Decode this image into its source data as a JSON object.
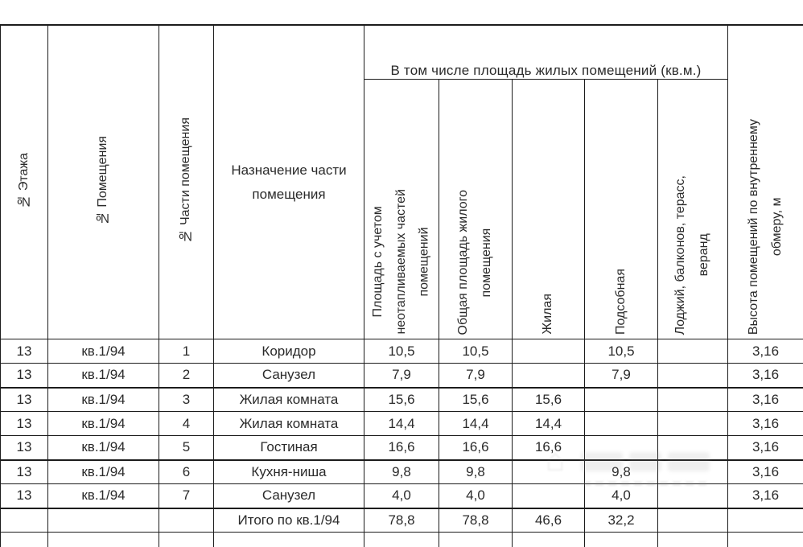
{
  "table": {
    "group_header": "В том числе площадь жилых помещений (кв.м.)",
    "columns": [
      {
        "label": "№ Этажа"
      },
      {
        "label": "№ Помещения"
      },
      {
        "label": "№ Части помещения"
      },
      {
        "label": "Назначение части\nпомещения"
      },
      {
        "label": "Площадь с учетом\nнеотапливаемых частей\nпомещений"
      },
      {
        "label": "Общая площадь жилого\nпомещения"
      },
      {
        "label": "Жилая"
      },
      {
        "label": "Подсобная"
      },
      {
        "label": "Лоджий, балконов, терасс,\nверанд"
      },
      {
        "label": "Высота помещений по внутреннему\nобмеру, м"
      }
    ],
    "rows": [
      [
        "13",
        "кв.1/94",
        "1",
        "Коридор",
        "10,5",
        "10,5",
        "",
        "10,5",
        "",
        "3,16"
      ],
      [
        "13",
        "кв.1/94",
        "2",
        "Санузел",
        "7,9",
        "7,9",
        "",
        "7,9",
        "",
        "3,16"
      ],
      [
        "13",
        "кв.1/94",
        "3",
        "Жилая комната",
        "15,6",
        "15,6",
        "15,6",
        "",
        "",
        "3,16"
      ],
      [
        "13",
        "кв.1/94",
        "4",
        "Жилая комната",
        "14,4",
        "14,4",
        "14,4",
        "",
        "",
        "3,16"
      ],
      [
        "13",
        "кв.1/94",
        "5",
        "Гостиная",
        "16,6",
        "16,6",
        "16,6",
        "",
        "",
        "3,16"
      ],
      [
        "13",
        "кв.1/94",
        "6",
        "Кухня-ниша",
        "9,8",
        "9,8",
        "",
        "9,8",
        "",
        "3,16"
      ],
      [
        "13",
        "кв.1/94",
        "7",
        "Санузел",
        "4,0",
        "4,0",
        "",
        "4,0",
        "",
        "3,16"
      ],
      [
        "",
        "",
        "",
        "Итого по кв.1/94",
        "78,8",
        "78,8",
        "46,6",
        "32,2",
        "",
        ""
      ]
    ],
    "colors": {
      "border": "#1c1c1c",
      "text": "#2a2a2a"
    }
  }
}
